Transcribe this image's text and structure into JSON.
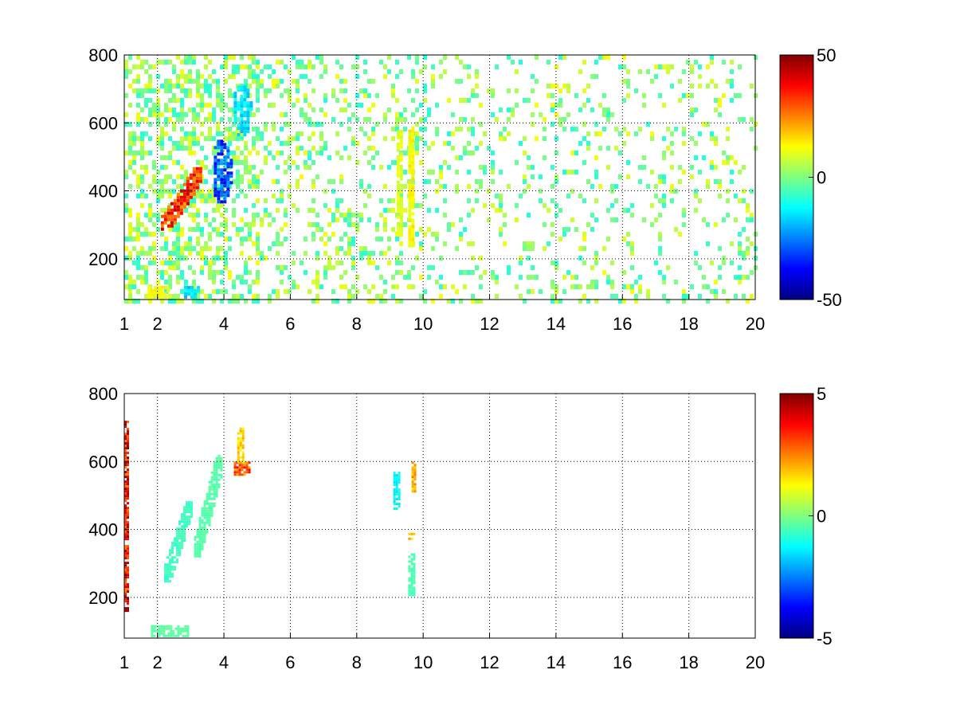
{
  "chart_data": [
    {
      "type": "heatmap",
      "title": "",
      "xlabel": "",
      "ylabel": "",
      "xlim": [
        1,
        20
      ],
      "ylim": [
        80,
        800
      ],
      "xticks": [
        1,
        2,
        4,
        6,
        8,
        10,
        12,
        14,
        16,
        18,
        20
      ],
      "yticks": [
        200,
        400,
        600,
        800
      ],
      "grid": true,
      "colormap": "jet",
      "clim": [
        -50,
        50
      ],
      "colorbar_ticks": [
        50,
        0,
        -50
      ],
      "colors": {
        "nan": "#ffffff",
        "grid": "#000000"
      },
      "features": [
        {
          "x": [
            2.1,
            3.3
          ],
          "y": [
            290,
            470
          ],
          "value": 40,
          "shape": "diagonal-streak"
        },
        {
          "x": [
            3.6,
            4.2
          ],
          "y": [
            360,
            560
          ],
          "value": -35,
          "shape": "blob"
        },
        {
          "x": [
            4.2,
            4.8
          ],
          "y": [
            560,
            720
          ],
          "value": -18,
          "shape": "blob"
        },
        {
          "x": [
            9.2,
            9.35
          ],
          "y": [
            280,
            580
          ],
          "value": 12,
          "shape": "vertical-band"
        },
        {
          "x": [
            9.55,
            9.7
          ],
          "y": [
            240,
            590
          ],
          "value": 15,
          "shape": "vertical-band"
        },
        {
          "x": [
            1.7,
            2.3
          ],
          "y": [
            85,
            120
          ],
          "value": 14,
          "shape": "patch"
        },
        {
          "x": [
            2.8,
            3.2
          ],
          "y": [
            85,
            120
          ],
          "value": -18,
          "shape": "patch"
        }
      ]
    },
    {
      "type": "heatmap",
      "title": "",
      "xlabel": "",
      "ylabel": "",
      "xlim": [
        1,
        20
      ],
      "ylim": [
        80,
        800
      ],
      "xticks": [
        1,
        2,
        4,
        6,
        8,
        10,
        12,
        14,
        16,
        18,
        20
      ],
      "yticks": [
        200,
        400,
        600,
        800
      ],
      "grid": true,
      "colormap": "jet",
      "clim": [
        -5,
        5
      ],
      "colorbar_ticks": [
        5,
        0,
        -5
      ],
      "colors": {
        "nan": "#ffffff",
        "grid": "#000000"
      },
      "features": [
        {
          "x": [
            2.2,
            3.0
          ],
          "y": [
            250,
            490
          ],
          "value": -0.8,
          "shape": "diagonal-streak"
        },
        {
          "x": [
            3.1,
            3.9
          ],
          "y": [
            320,
            620
          ],
          "value": -0.5,
          "shape": "diagonal-streak"
        },
        {
          "x": [
            1.8,
            2.9
          ],
          "y": [
            88,
            118
          ],
          "value": -0.4,
          "shape": "patch"
        },
        {
          "x": [
            4.3,
            4.8
          ],
          "y": [
            560,
            600
          ],
          "value": 3.5,
          "shape": "patch"
        },
        {
          "x": [
            4.4,
            4.6
          ],
          "y": [
            600,
            700
          ],
          "value": 2.0,
          "shape": "vertical-band"
        },
        {
          "x": [
            9.1,
            9.3
          ],
          "y": [
            460,
            570
          ],
          "value": -1.5,
          "shape": "vertical-band"
        },
        {
          "x": [
            9.65,
            9.75
          ],
          "y": [
            510,
            600
          ],
          "value": 2.5,
          "shape": "vertical-band"
        },
        {
          "x": [
            9.55,
            9.7
          ],
          "y": [
            210,
            330
          ],
          "value": -0.6,
          "shape": "vertical-band"
        },
        {
          "x": [
            9.55,
            9.7
          ],
          "y": [
            370,
            390
          ],
          "value": 2.2,
          "shape": "patch"
        },
        {
          "x": [
            1.0,
            1.1
          ],
          "y": [
            160,
            720
          ],
          "value": 4.5,
          "shape": "vertical-band"
        }
      ]
    }
  ]
}
